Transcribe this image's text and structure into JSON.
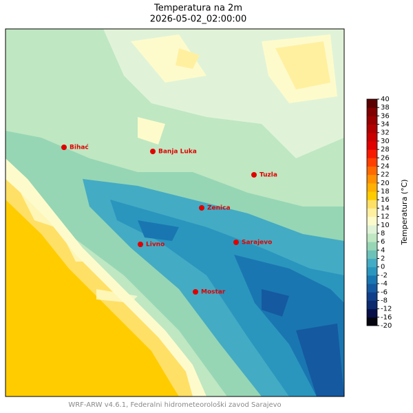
{
  "title": "Temperatura na 2m",
  "subtitle": "2026-05-02_02:00:00",
  "cities": [
    "Bihać",
    "Banja Luka",
    "Tuzla",
    "Zenica",
    "Livno",
    "Sarajevo",
    "Mostar"
  ],
  "colorbar": {
    "label": "Temperatura (°C)",
    "ticks": [
      -20,
      -16,
      -12,
      -8,
      -6,
      -4,
      -2,
      0,
      2,
      4,
      6,
      8,
      10,
      12,
      14,
      16,
      18,
      20,
      22,
      24,
      26,
      28,
      30,
      32,
      34,
      36,
      38,
      40
    ],
    "colors": [
      "#050510",
      "#08104a",
      "#0c2a6e",
      "#103f8a",
      "#1559a0",
      "#1a76b0",
      "#2a96be",
      "#44abc4",
      "#6cc2b8",
      "#96d6b4",
      "#bfe7c2",
      "#e0f3d8",
      "#fdfbcc",
      "#fff0a0",
      "#ffe066",
      "#ffcc00",
      "#ffb000",
      "#ff9000",
      "#ff6a00",
      "#ff4000",
      "#f81a00",
      "#e00000",
      "#c80000",
      "#b00000",
      "#980000",
      "#800000",
      "#5a0000"
    ]
  },
  "footer": "WRF-ARW v4.6.1, Federalni hidrometeorološki zavod Sarajevo"
}
